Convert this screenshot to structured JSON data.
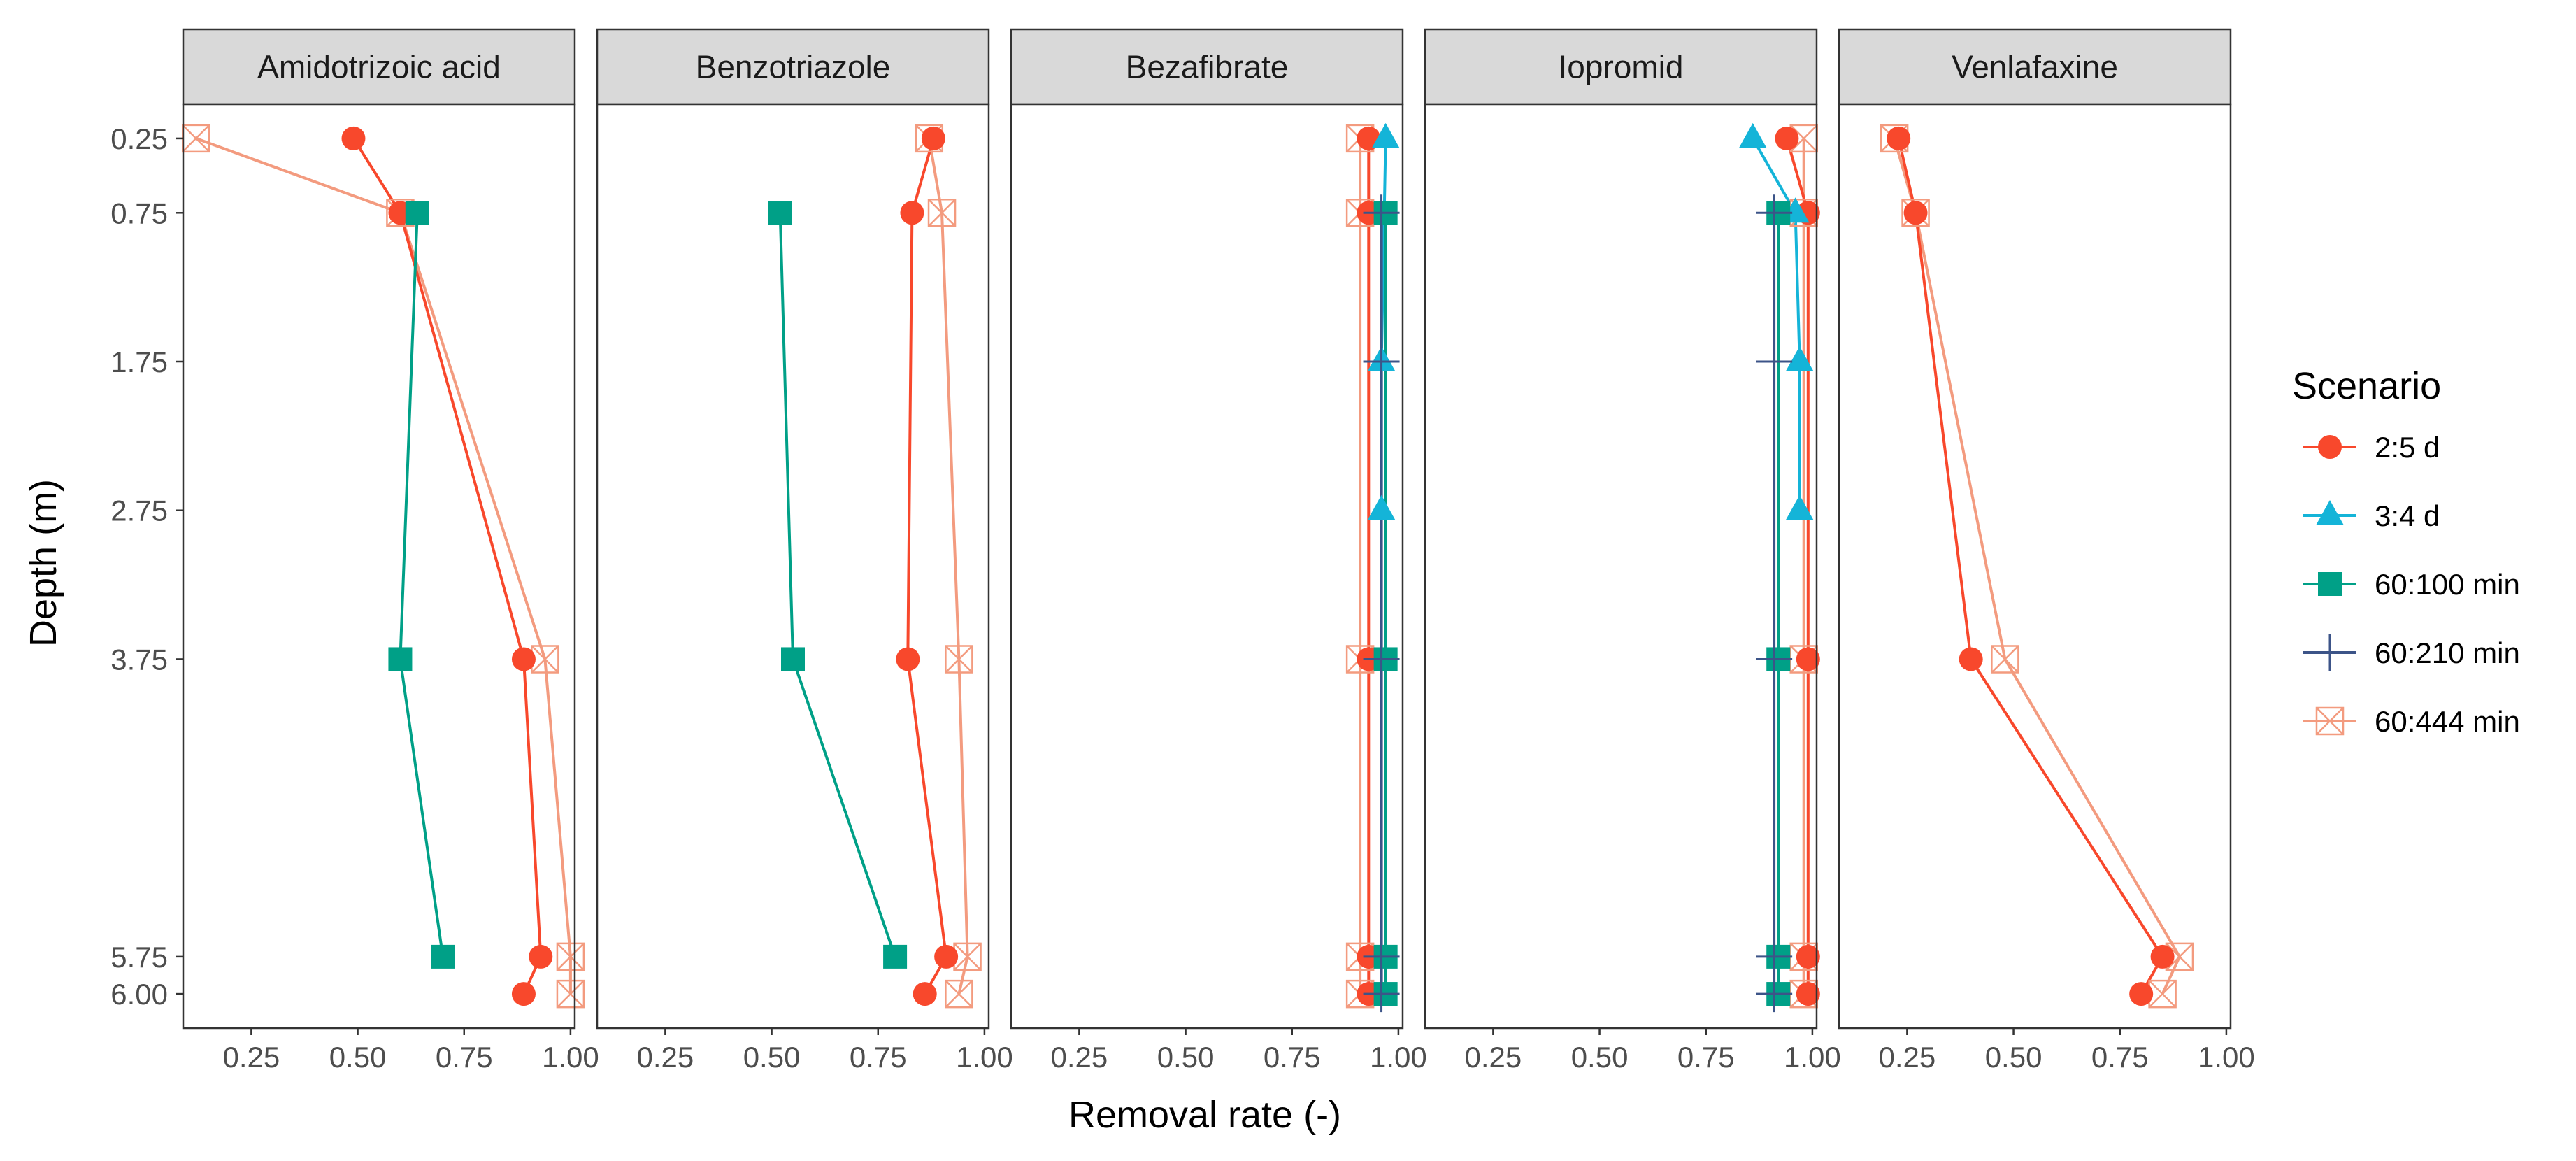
{
  "chart_data": {
    "type": "line",
    "facet_type": "faceted line plot with markers",
    "facets": [
      "Amidotrizoic acid",
      "Benzotriazole",
      "Bezafibrate",
      "Iopromid",
      "Venlafaxine"
    ],
    "xlabel": "Removal rate (-)",
    "ylabel": "Depth (m)",
    "xlim": [
      0.09,
      1.01
    ],
    "ylim": [
      6.23,
      0.02
    ],
    "y_reversed": true,
    "x_ticks": [
      0.25,
      0.5,
      0.75,
      1.0
    ],
    "x_tick_labels": [
      "0.25",
      "0.50",
      "0.75",
      "1.00"
    ],
    "y_ticks": [
      0.25,
      0.75,
      1.75,
      2.75,
      3.75,
      5.75,
      6.0
    ],
    "y_tick_labels": [
      "0.25",
      "0.75",
      "1.75",
      "2.75",
      "3.75",
      "5.75",
      "6.00"
    ],
    "legend_title": "Scenario",
    "legend_position": "right",
    "series": [
      {
        "name": "2:5 d",
        "color": "#F8482C",
        "marker": "circle"
      },
      {
        "name": "3:4 d",
        "color": "#14B4D8",
        "marker": "triangle"
      },
      {
        "name": "60:100 min",
        "color": "#00A087",
        "marker": "square"
      },
      {
        "name": "60:210 min",
        "color": "#3C5488",
        "marker": "plus"
      },
      {
        "name": "60:444 min",
        "color": "#F39B7F",
        "marker": "boxcross"
      }
    ],
    "panels": [
      {
        "title": "Amidotrizoic acid",
        "lines": [
          {
            "series": "2:5 d",
            "points": [
              [
                0.49,
                0.25
              ],
              [
                0.6,
                0.75
              ],
              [
                0.89,
                3.75
              ],
              [
                0.93,
                5.75
              ],
              [
                0.89,
                6.0
              ]
            ]
          },
          {
            "series": "60:100 min",
            "points": [
              [
                0.64,
                0.75
              ],
              [
                0.6,
                3.75
              ],
              [
                0.7,
                5.75
              ]
            ]
          },
          {
            "series": "60:444 min",
            "points": [
              [
                0.12,
                0.25
              ],
              [
                0.6,
                0.75
              ],
              [
                0.94,
                3.75
              ],
              [
                1.0,
                5.75
              ],
              [
                1.0,
                6.0
              ]
            ]
          }
        ]
      },
      {
        "title": "Benzotriazole",
        "lines": [
          {
            "series": "2:5 d",
            "points": [
              [
                0.88,
                0.25
              ],
              [
                0.83,
                0.75
              ],
              [
                0.82,
                3.75
              ],
              [
                0.91,
                5.75
              ],
              [
                0.86,
                6.0
              ]
            ]
          },
          {
            "series": "60:100 min",
            "points": [
              [
                0.52,
                0.75
              ],
              [
                0.55,
                3.75
              ],
              [
                0.79,
                5.75
              ]
            ]
          },
          {
            "series": "60:444 min",
            "points": [
              [
                0.87,
                0.25
              ],
              [
                0.9,
                0.75
              ],
              [
                0.94,
                3.75
              ],
              [
                0.96,
                5.75
              ],
              [
                0.94,
                6.0
              ]
            ]
          }
        ]
      },
      {
        "title": "Bezafibrate",
        "lines": [
          {
            "series": "2:5 d",
            "points": [
              [
                0.93,
                0.25
              ],
              [
                0.93,
                0.75
              ],
              [
                0.93,
                3.75
              ],
              [
                0.93,
                5.75
              ],
              [
                0.93,
                6.0
              ]
            ]
          },
          {
            "series": "3:4 d",
            "points": [
              [
                0.97,
                0.25
              ],
              [
                0.96,
                1.75
              ],
              [
                0.96,
                2.75
              ]
            ]
          },
          {
            "series": "60:100 min",
            "points": [
              [
                0.97,
                0.75
              ],
              [
                0.97,
                3.75
              ],
              [
                0.97,
                5.75
              ],
              [
                0.97,
                6.0
              ]
            ]
          },
          {
            "series": "60:210 min",
            "points": [
              [
                0.96,
                0.75
              ],
              [
                0.96,
                1.75
              ],
              [
                0.96,
                3.75
              ],
              [
                0.96,
                5.75
              ],
              [
                0.96,
                6.0
              ]
            ]
          },
          {
            "series": "60:444 min",
            "points": [
              [
                0.91,
                0.25
              ],
              [
                0.91,
                0.75
              ],
              [
                0.91,
                3.75
              ],
              [
                0.91,
                5.75
              ],
              [
                0.91,
                6.0
              ]
            ]
          }
        ]
      },
      {
        "title": "Iopromid",
        "lines": [
          {
            "series": "2:5 d",
            "points": [
              [
                0.94,
                0.25
              ],
              [
                0.99,
                0.75
              ],
              [
                0.99,
                3.75
              ],
              [
                0.99,
                5.75
              ],
              [
                0.99,
                6.0
              ]
            ]
          },
          {
            "series": "3:4 d",
            "points": [
              [
                0.86,
                0.25
              ],
              [
                0.96,
                0.75
              ],
              [
                0.97,
                1.75
              ],
              [
                0.97,
                2.75
              ]
            ]
          },
          {
            "series": "60:100 min",
            "points": [
              [
                0.92,
                0.75
              ],
              [
                0.92,
                3.75
              ],
              [
                0.92,
                5.75
              ],
              [
                0.92,
                6.0
              ]
            ]
          },
          {
            "series": "60:210 min",
            "points": [
              [
                0.91,
                0.75
              ],
              [
                0.91,
                1.75
              ],
              [
                0.91,
                3.75
              ],
              [
                0.91,
                5.75
              ],
              [
                0.91,
                6.0
              ]
            ]
          },
          {
            "series": "60:444 min",
            "points": [
              [
                0.98,
                0.25
              ],
              [
                0.98,
                0.75
              ],
              [
                0.98,
                3.75
              ],
              [
                0.98,
                5.75
              ],
              [
                0.98,
                6.0
              ]
            ]
          }
        ]
      },
      {
        "title": "Venlafaxine",
        "lines": [
          {
            "series": "2:5 d",
            "points": [
              [
                0.23,
                0.25
              ],
              [
                0.27,
                0.75
              ],
              [
                0.4,
                3.75
              ],
              [
                0.85,
                5.75
              ],
              [
                0.8,
                6.0
              ]
            ]
          },
          {
            "series": "60:444 min",
            "points": [
              [
                0.22,
                0.25
              ],
              [
                0.27,
                0.75
              ],
              [
                0.48,
                3.75
              ],
              [
                0.89,
                5.75
              ],
              [
                0.85,
                6.0
              ]
            ]
          }
        ]
      }
    ]
  }
}
